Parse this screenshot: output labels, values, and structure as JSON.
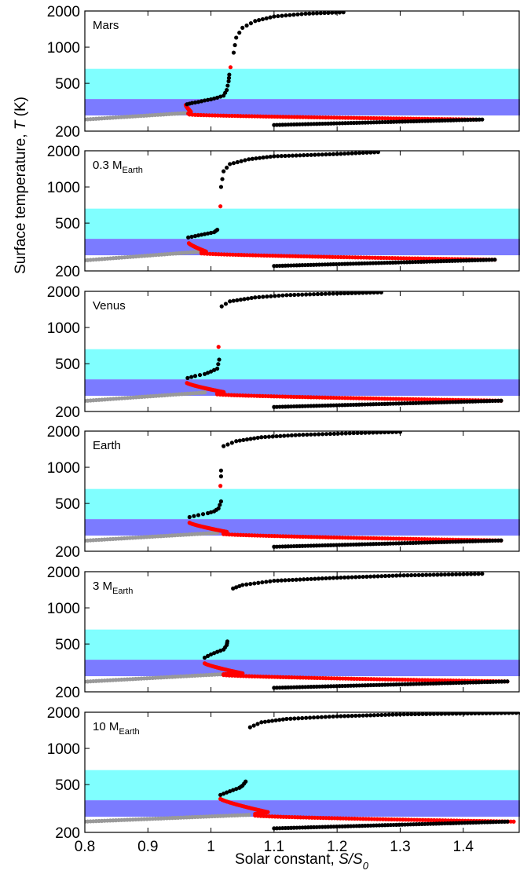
{
  "chart_data": {
    "type": "scatter",
    "xlabel": {
      "prefix": "Solar constant, ",
      "var": "S/S",
      "sub": "0"
    },
    "ylabel": {
      "prefix": "Surface temperature, ",
      "var": "T",
      "suffix": " (K)"
    },
    "xlim": [
      0.8,
      1.49
    ],
    "ylim": [
      200,
      2000
    ],
    "yscale": "log",
    "xticks": [
      "0.8",
      "0.9",
      "1",
      "1.1",
      "1.2",
      "1.3",
      "1.4"
    ],
    "yticks": [
      "200",
      "500",
      "1000",
      "2000"
    ],
    "bands": [
      {
        "color": "#80ffff",
        "y": [
          370,
          660
        ]
      },
      {
        "color": "#7b7bff",
        "y": [
          270,
          370
        ]
      }
    ],
    "colors": {
      "black": "#000000",
      "red": "#ff0000",
      "gray": "#999999"
    },
    "panels": [
      {
        "label": "Mars",
        "label_sub": "",
        "gray": {
          "x": [
            0.8,
            0.965
          ],
          "y": [
            250,
            284
          ]
        },
        "red_spike": {
          "start": [
            0.96,
            330
          ],
          "peak": [
            0.968,
            290
          ],
          "end": [
            0.964,
            280
          ]
        },
        "red_tail": {
          "x": [
            0.966,
            1.42
          ],
          "y": [
            275,
            250
          ]
        },
        "black_lower": {
          "x": [
            1.1,
            1.43
          ],
          "y": [
            225,
            250
          ]
        },
        "black_mid": {
          "points": [
            [
              0.962,
              335
            ],
            [
              0.97,
              343
            ],
            [
              0.98,
              350
            ],
            [
              0.99,
              360
            ],
            [
              1.0,
              368
            ],
            [
              1.01,
              380
            ],
            [
              1.02,
              395
            ],
            [
              1.025,
              440
            ],
            [
              1.028,
              520
            ],
            [
              1.029,
              590
            ]
          ]
        },
        "black_upper": {
          "x_start": 1.036,
          "curve": [
            [
              1.036,
              900
            ],
            [
              1.04,
              1200
            ],
            [
              1.05,
              1450
            ],
            [
              1.07,
              1650
            ],
            [
              1.1,
              1800
            ],
            [
              1.15,
              1900
            ],
            [
              1.21,
              1950
            ]
          ]
        },
        "red_unstable": [
          [
            1.031,
            680
          ]
        ]
      },
      {
        "label": "0.3 M",
        "label_sub": "Earth",
        "gray": {
          "x": [
            0.8,
            0.985
          ],
          "y": [
            245,
            290
          ]
        },
        "red_spike": {
          "start": [
            0.965,
            340
          ],
          "peak": [
            0.992,
            290
          ],
          "end": [
            0.985,
            285
          ]
        },
        "red_tail": {
          "x": [
            0.985,
            1.45
          ],
          "y": [
            280,
            248
          ]
        },
        "black_lower": {
          "x": [
            1.1,
            1.45
          ],
          "y": [
            220,
            248
          ]
        },
        "black_mid": {
          "points": [
            [
              0.964,
              380
            ],
            [
              0.975,
              390
            ],
            [
              0.985,
              400
            ],
            [
              0.995,
              410
            ],
            [
              1.005,
              420
            ],
            [
              1.01,
              440
            ]
          ]
        },
        "black_upper": {
          "x_start": 1.016,
          "curve": [
            [
              1.016,
              1000
            ],
            [
              1.02,
              1350
            ],
            [
              1.03,
              1550
            ],
            [
              1.06,
              1700
            ],
            [
              1.1,
              1800
            ],
            [
              1.2,
              1880
            ],
            [
              1.265,
              1950
            ]
          ]
        },
        "red_unstable": [
          [
            1.015,
            690
          ]
        ]
      },
      {
        "label": "Venus",
        "label_sub": "",
        "gray": {
          "x": [
            0.8,
            0.99
          ],
          "y": [
            245,
            288
          ]
        },
        "red_spike": {
          "start": [
            0.962,
            345
          ],
          "peak": [
            1.02,
            290
          ],
          "end": [
            1.01,
            282
          ]
        },
        "red_tail": {
          "x": [
            1.01,
            1.46
          ],
          "y": [
            278,
            246
          ]
        },
        "black_lower": {
          "x": [
            1.1,
            1.46
          ],
          "y": [
            218,
            246
          ]
        },
        "black_mid": {
          "points": [
            [
              0.963,
              380
            ],
            [
              0.975,
              395
            ],
            [
              0.99,
              410
            ],
            [
              1.0,
              430
            ],
            [
              1.01,
              455
            ],
            [
              1.013,
              540
            ]
          ]
        },
        "black_upper": {
          "x_start": 1.017,
          "curve": [
            [
              1.017,
              1500
            ],
            [
              1.03,
              1650
            ],
            [
              1.07,
              1780
            ],
            [
              1.12,
              1860
            ],
            [
              1.2,
              1920
            ],
            [
              1.27,
              1960
            ]
          ]
        },
        "red_unstable": [
          [
            1.012,
            690
          ]
        ]
      },
      {
        "label": "Earth",
        "label_sub": "",
        "gray": {
          "x": [
            0.8,
            1.01
          ],
          "y": [
            245,
            285
          ]
        },
        "red_spike": {
          "start": [
            0.966,
            345
          ],
          "peak": [
            1.025,
            290
          ],
          "end": [
            1.02,
            282
          ]
        },
        "red_tail": {
          "x": [
            1.02,
            1.46
          ],
          "y": [
            278,
            246
          ]
        },
        "black_lower": {
          "x": [
            1.1,
            1.46
          ],
          "y": [
            218,
            246
          ]
        },
        "black_mid": {
          "points": [
            [
              0.966,
              385
            ],
            [
              0.98,
              400
            ],
            [
              0.995,
              415
            ],
            [
              1.005,
              430
            ],
            [
              1.012,
              455
            ],
            [
              1.016,
              520
            ]
          ]
        },
        "black_upper": {
          "x_start": 1.02,
          "curve": [
            [
              1.02,
              1500
            ],
            [
              1.04,
              1650
            ],
            [
              1.08,
              1780
            ],
            [
              1.14,
              1860
            ],
            [
              1.22,
              1920
            ],
            [
              1.3,
              1970
            ]
          ],
          "extra": [
            [
              1.016,
              940
            ],
            [
              1.016,
              840
            ]
          ]
        },
        "red_unstable": [
          [
            1.015,
            700
          ]
        ]
      },
      {
        "label": "3 M",
        "label_sub": "Earth",
        "gray": {
          "x": [
            0.8,
            1.015
          ],
          "y": [
            243,
            280
          ]
        },
        "red_spike": {
          "start": [
            0.99,
            345
          ],
          "peak": [
            1.05,
            285
          ],
          "end": [
            1.02,
            280
          ]
        },
        "red_tail": {
          "x": [
            1.02,
            1.47
          ],
          "y": [
            276,
            244
          ]
        },
        "black_lower": {
          "x": [
            1.1,
            1.47
          ],
          "y": [
            216,
            244
          ]
        },
        "black_mid": {
          "points": [
            [
              0.99,
              385
            ],
            [
              1.0,
              410
            ],
            [
              1.01,
              430
            ],
            [
              1.02,
              450
            ],
            [
              1.025,
              490
            ],
            [
              1.026,
              525
            ]
          ]
        },
        "black_upper": {
          "x_start": 1.035,
          "curve": [
            [
              1.035,
              1450
            ],
            [
              1.05,
              1550
            ],
            [
              1.1,
              1680
            ],
            [
              1.2,
              1780
            ],
            [
              1.3,
              1860
            ],
            [
              1.43,
              1920
            ]
          ]
        },
        "red_unstable": []
      },
      {
        "label": "10 M",
        "label_sub": "Earth",
        "gray": {
          "x": [
            0.8,
            1.06
          ],
          "y": [
            246,
            280
          ]
        },
        "red_spike": {
          "start": [
            1.015,
            380
          ],
          "peak": [
            1.09,
            295
          ],
          "end": [
            1.07,
            285
          ]
        },
        "red_tail": {
          "x": [
            1.07,
            1.48
          ],
          "y": [
            276,
            246
          ]
        },
        "black_lower": {
          "x": [
            1.1,
            1.47
          ],
          "y": [
            216,
            246
          ]
        },
        "black_mid": {
          "points": [
            [
              1.015,
              410
            ],
            [
              1.025,
              430
            ],
            [
              1.035,
              450
            ],
            [
              1.045,
              470
            ],
            [
              1.05,
              490
            ],
            [
              1.055,
              530
            ]
          ]
        },
        "black_upper": {
          "x_start": 1.062,
          "curve": [
            [
              1.062,
              1500
            ],
            [
              1.08,
              1650
            ],
            [
              1.12,
              1760
            ],
            [
              1.2,
              1850
            ],
            [
              1.3,
              1920
            ],
            [
              1.49,
              1980
            ]
          ]
        },
        "red_unstable": []
      }
    ]
  }
}
